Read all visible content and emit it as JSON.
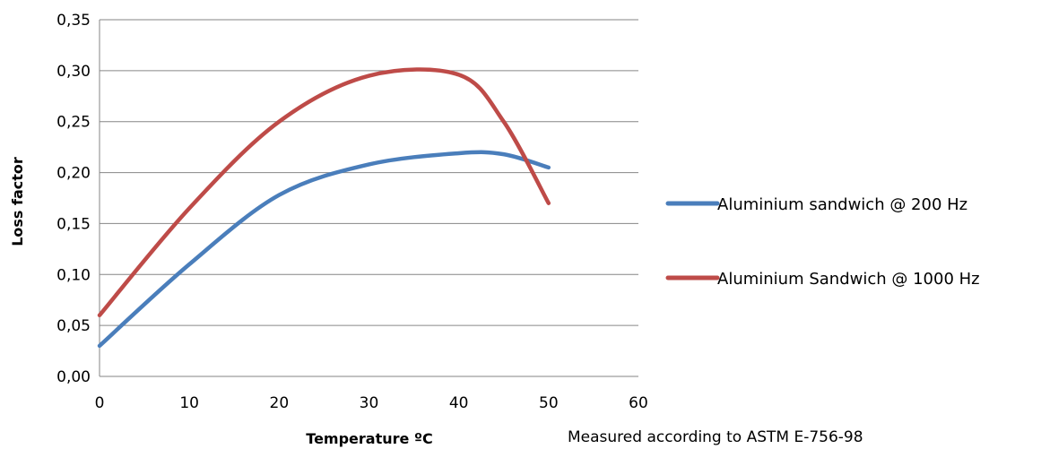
{
  "chart_data": {
    "type": "line",
    "title": "",
    "xlabel": "Temperature ºC",
    "ylabel": "Loss factor",
    "xlim": [
      0,
      60
    ],
    "ylim": [
      0,
      0.35
    ],
    "x_ticks": [
      "0",
      "10",
      "20",
      "30",
      "40",
      "50",
      "60"
    ],
    "y_ticks": [
      "0,00",
      "0,05",
      "0,10",
      "0,15",
      "0,20",
      "0,25",
      "0,30",
      "0,35"
    ],
    "grid": "horizontal",
    "legend_position": "right",
    "series": [
      {
        "name": "Aluminium sandwich @ 200 Hz",
        "color": "#4a7ebb",
        "x": [
          0,
          10,
          20,
          30,
          40,
          45,
          50
        ],
        "y": [
          0.03,
          0.11,
          0.178,
          0.208,
          0.219,
          0.218,
          0.205
        ]
      },
      {
        "name": "Aluminium Sandwich @ 1000 Hz",
        "color": "#be4b48",
        "x": [
          0,
          10,
          20,
          30,
          40,
          45,
          50
        ],
        "y": [
          0.06,
          0.165,
          0.25,
          0.295,
          0.296,
          0.25,
          0.17
        ]
      }
    ]
  },
  "note": "Measured according to ASTM E-756-98"
}
